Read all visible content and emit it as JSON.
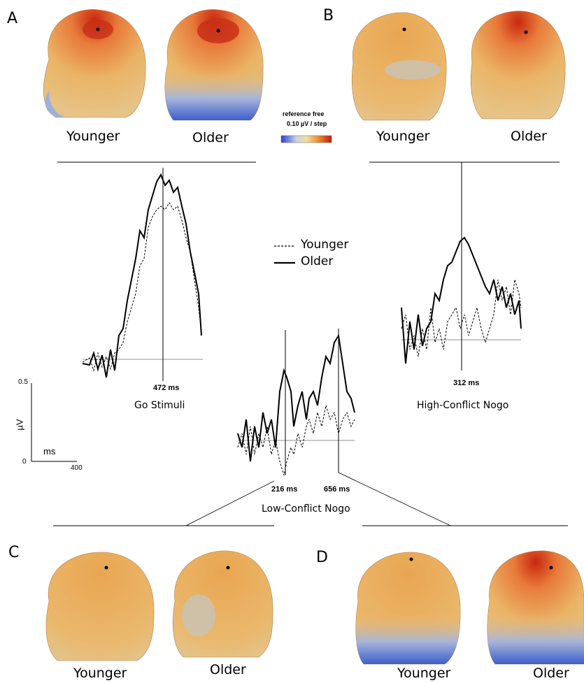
{
  "panels": {
    "a": "A",
    "b": "B",
    "c": "C",
    "d": "D"
  },
  "groups": {
    "younger": "Younger",
    "older": "Older"
  },
  "colorbar": {
    "line1": "reference free",
    "line2": "0.10 µV / step"
  },
  "legend": {
    "younger": "Younger",
    "older": "Older"
  },
  "conditions": {
    "go": "Go Stimuli",
    "high": "High-Conflict Nogo",
    "low": "Low-Conflict Nogo"
  },
  "latencies": {
    "go": "472 ms",
    "high": "312 ms",
    "low1": "216 ms",
    "low2": "656 ms"
  },
  "scale": {
    "y_top": "0.5",
    "y_bottom": "0",
    "y_unit": "µV",
    "x_unit": "ms",
    "x_max": "400"
  },
  "colors": {
    "map_warm": "#e8a04a",
    "map_peak": "#d03a1a",
    "map_cool": "#5a7fd0",
    "baseline": "#c8c8c8"
  }
}
